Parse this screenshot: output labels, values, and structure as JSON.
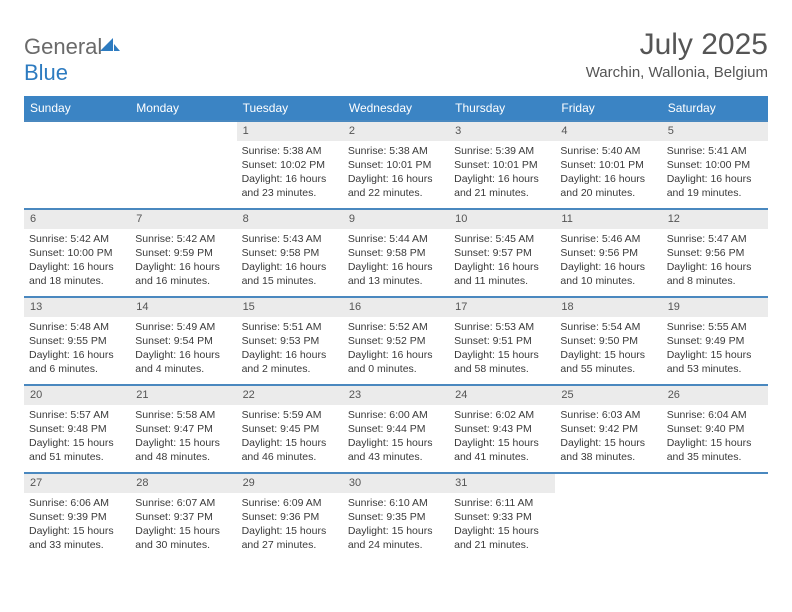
{
  "brand": {
    "part1": "General",
    "part2": "Blue"
  },
  "title": "July 2025",
  "location": "Warchin, Wallonia, Belgium",
  "colors": {
    "header_bar": "#3b84c4",
    "week_border": "#4a88bf",
    "daynum_bg": "#ebebeb",
    "text": "#3a3a3a",
    "title_text": "#555555",
    "logo_gray": "#6a6a6a",
    "logo_blue": "#2d7bc0"
  },
  "dow": [
    "Sunday",
    "Monday",
    "Tuesday",
    "Wednesday",
    "Thursday",
    "Friday",
    "Saturday"
  ],
  "weeks": [
    [
      null,
      null,
      {
        "n": "1",
        "sr": "Sunrise: 5:38 AM",
        "ss": "Sunset: 10:02 PM",
        "dl": "Daylight: 16 hours and 23 minutes."
      },
      {
        "n": "2",
        "sr": "Sunrise: 5:38 AM",
        "ss": "Sunset: 10:01 PM",
        "dl": "Daylight: 16 hours and 22 minutes."
      },
      {
        "n": "3",
        "sr": "Sunrise: 5:39 AM",
        "ss": "Sunset: 10:01 PM",
        "dl": "Daylight: 16 hours and 21 minutes."
      },
      {
        "n": "4",
        "sr": "Sunrise: 5:40 AM",
        "ss": "Sunset: 10:01 PM",
        "dl": "Daylight: 16 hours and 20 minutes."
      },
      {
        "n": "5",
        "sr": "Sunrise: 5:41 AM",
        "ss": "Sunset: 10:00 PM",
        "dl": "Daylight: 16 hours and 19 minutes."
      }
    ],
    [
      {
        "n": "6",
        "sr": "Sunrise: 5:42 AM",
        "ss": "Sunset: 10:00 PM",
        "dl": "Daylight: 16 hours and 18 minutes."
      },
      {
        "n": "7",
        "sr": "Sunrise: 5:42 AM",
        "ss": "Sunset: 9:59 PM",
        "dl": "Daylight: 16 hours and 16 minutes."
      },
      {
        "n": "8",
        "sr": "Sunrise: 5:43 AM",
        "ss": "Sunset: 9:58 PM",
        "dl": "Daylight: 16 hours and 15 minutes."
      },
      {
        "n": "9",
        "sr": "Sunrise: 5:44 AM",
        "ss": "Sunset: 9:58 PM",
        "dl": "Daylight: 16 hours and 13 minutes."
      },
      {
        "n": "10",
        "sr": "Sunrise: 5:45 AM",
        "ss": "Sunset: 9:57 PM",
        "dl": "Daylight: 16 hours and 11 minutes."
      },
      {
        "n": "11",
        "sr": "Sunrise: 5:46 AM",
        "ss": "Sunset: 9:56 PM",
        "dl": "Daylight: 16 hours and 10 minutes."
      },
      {
        "n": "12",
        "sr": "Sunrise: 5:47 AM",
        "ss": "Sunset: 9:56 PM",
        "dl": "Daylight: 16 hours and 8 minutes."
      }
    ],
    [
      {
        "n": "13",
        "sr": "Sunrise: 5:48 AM",
        "ss": "Sunset: 9:55 PM",
        "dl": "Daylight: 16 hours and 6 minutes."
      },
      {
        "n": "14",
        "sr": "Sunrise: 5:49 AM",
        "ss": "Sunset: 9:54 PM",
        "dl": "Daylight: 16 hours and 4 minutes."
      },
      {
        "n": "15",
        "sr": "Sunrise: 5:51 AM",
        "ss": "Sunset: 9:53 PM",
        "dl": "Daylight: 16 hours and 2 minutes."
      },
      {
        "n": "16",
        "sr": "Sunrise: 5:52 AM",
        "ss": "Sunset: 9:52 PM",
        "dl": "Daylight: 16 hours and 0 minutes."
      },
      {
        "n": "17",
        "sr": "Sunrise: 5:53 AM",
        "ss": "Sunset: 9:51 PM",
        "dl": "Daylight: 15 hours and 58 minutes."
      },
      {
        "n": "18",
        "sr": "Sunrise: 5:54 AM",
        "ss": "Sunset: 9:50 PM",
        "dl": "Daylight: 15 hours and 55 minutes."
      },
      {
        "n": "19",
        "sr": "Sunrise: 5:55 AM",
        "ss": "Sunset: 9:49 PM",
        "dl": "Daylight: 15 hours and 53 minutes."
      }
    ],
    [
      {
        "n": "20",
        "sr": "Sunrise: 5:57 AM",
        "ss": "Sunset: 9:48 PM",
        "dl": "Daylight: 15 hours and 51 minutes."
      },
      {
        "n": "21",
        "sr": "Sunrise: 5:58 AM",
        "ss": "Sunset: 9:47 PM",
        "dl": "Daylight: 15 hours and 48 minutes."
      },
      {
        "n": "22",
        "sr": "Sunrise: 5:59 AM",
        "ss": "Sunset: 9:45 PM",
        "dl": "Daylight: 15 hours and 46 minutes."
      },
      {
        "n": "23",
        "sr": "Sunrise: 6:00 AM",
        "ss": "Sunset: 9:44 PM",
        "dl": "Daylight: 15 hours and 43 minutes."
      },
      {
        "n": "24",
        "sr": "Sunrise: 6:02 AM",
        "ss": "Sunset: 9:43 PM",
        "dl": "Daylight: 15 hours and 41 minutes."
      },
      {
        "n": "25",
        "sr": "Sunrise: 6:03 AM",
        "ss": "Sunset: 9:42 PM",
        "dl": "Daylight: 15 hours and 38 minutes."
      },
      {
        "n": "26",
        "sr": "Sunrise: 6:04 AM",
        "ss": "Sunset: 9:40 PM",
        "dl": "Daylight: 15 hours and 35 minutes."
      }
    ],
    [
      {
        "n": "27",
        "sr": "Sunrise: 6:06 AM",
        "ss": "Sunset: 9:39 PM",
        "dl": "Daylight: 15 hours and 33 minutes."
      },
      {
        "n": "28",
        "sr": "Sunrise: 6:07 AM",
        "ss": "Sunset: 9:37 PM",
        "dl": "Daylight: 15 hours and 30 minutes."
      },
      {
        "n": "29",
        "sr": "Sunrise: 6:09 AM",
        "ss": "Sunset: 9:36 PM",
        "dl": "Daylight: 15 hours and 27 minutes."
      },
      {
        "n": "30",
        "sr": "Sunrise: 6:10 AM",
        "ss": "Sunset: 9:35 PM",
        "dl": "Daylight: 15 hours and 24 minutes."
      },
      {
        "n": "31",
        "sr": "Sunrise: 6:11 AM",
        "ss": "Sunset: 9:33 PM",
        "dl": "Daylight: 15 hours and 21 minutes."
      },
      null,
      null
    ]
  ]
}
